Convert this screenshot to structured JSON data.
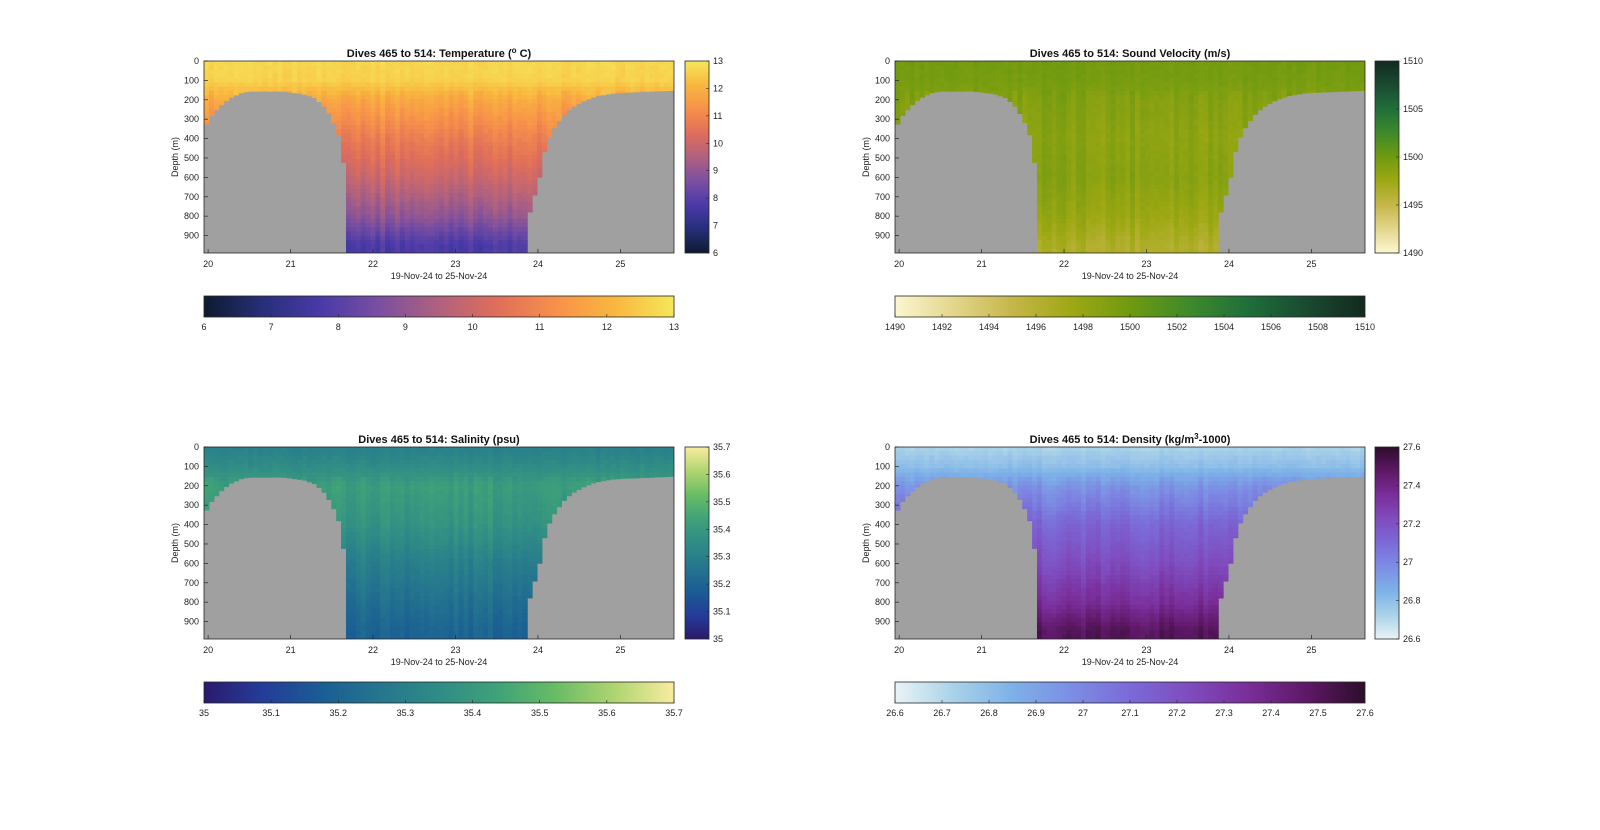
{
  "panels": [
    {
      "id": "temperature",
      "title": "Dives 465 to 514: Temperature (",
      "title_sup": "o",
      "title_end": " C)",
      "ylabel": "Depth (m)",
      "xlabel": "19-Nov-24 to 25-Nov-24",
      "cmap": [
        "#0d1b2e",
        "#262f7a",
        "#4a3aa8",
        "#7b4fa0",
        "#b0617f",
        "#e06e5a",
        "#f7914a",
        "#f9b73f",
        "#f6e75a"
      ],
      "surface": 12.6,
      "deep": 7.8,
      "mid": 10.4
    },
    {
      "id": "sound_velocity",
      "title": "Dives 465 to 514: Sound Velocity (m/s)",
      "title_sup": "",
      "title_end": "",
      "ylabel": "Depth (m)",
      "xlabel": "19-Nov-24 to 25-Nov-24",
      "cmap": [
        "#fbf6d0",
        "#e3d68c",
        "#c5b649",
        "#9ea813",
        "#6f9a10",
        "#3f8a2a",
        "#1f6f3a",
        "#1a4a30",
        "#132a1e"
      ],
      "surface": 1499.5,
      "deep": 1496.6,
      "mid": 1498.6
    },
    {
      "id": "salinity",
      "title": "Dives 465 to 514: Salinity (psu)",
      "title_sup": "",
      "title_end": "",
      "ylabel": "Depth (m)",
      "xlabel": "19-Nov-24 to 25-Nov-24",
      "cmap": [
        "#2a1a6c",
        "#243c9a",
        "#1a5d94",
        "#25768e",
        "#2f8c86",
        "#3fa278",
        "#69bc66",
        "#b0d570",
        "#f8eca0"
      ],
      "surface": 35.3,
      "deep": 35.22,
      "mid": 35.38
    },
    {
      "id": "density",
      "title": "Dives 465 to 514: Density (kg/m",
      "title_sup": "3",
      "title_end": "-1000)",
      "ylabel": "Depth (m)",
      "xlabel": "19-Nov-24 to 25-Nov-24",
      "cmap": [
        "#eaf3f6",
        "#a9d2e8",
        "#7db1e8",
        "#7c8ee4",
        "#7b6ad8",
        "#7f4cbe",
        "#7a2e9a",
        "#5e1866",
        "#2d0d2a"
      ],
      "surface": 26.78,
      "deep": 27.45,
      "mid": 27.18
    }
  ],
  "chart_data": [
    {
      "type": "heatmap",
      "title": "Dives 465 to 514: Temperature (° C)",
      "xlabel": "19-Nov-24 to 25-Nov-24",
      "ylabel": "Depth (m)",
      "x_ticks": [
        20,
        21,
        22,
        23,
        24,
        25
      ],
      "x_range": [
        19.95,
        25.65
      ],
      "y_ticks": [
        0,
        100,
        200,
        300,
        400,
        500,
        600,
        700,
        800,
        900
      ],
      "y_range": [
        0,
        990
      ],
      "colorbar_ticks": [
        6,
        7,
        8,
        9,
        10,
        11,
        12,
        13
      ],
      "clim": [
        6,
        13
      ],
      "horizontal_colorbar_ticks": [
        6,
        7,
        8,
        9,
        10,
        11,
        12,
        13
      ],
      "values_by_depth": {
        "depths": [
          0,
          100,
          200,
          400,
          600,
          800,
          950
        ],
        "values": [
          12.7,
          12.6,
          11.8,
          10.8,
          10.0,
          9.0,
          7.8
        ]
      },
      "grid": false
    },
    {
      "type": "heatmap",
      "title": "Dives 465 to 514: Sound Velocity (m/s)",
      "xlabel": "19-Nov-24 to 25-Nov-24",
      "ylabel": "Depth (m)",
      "x_ticks": [
        20,
        21,
        22,
        23,
        24,
        25
      ],
      "x_range": [
        19.95,
        25.65
      ],
      "y_ticks": [
        0,
        100,
        200,
        300,
        400,
        500,
        600,
        700,
        800,
        900
      ],
      "y_range": [
        0,
        990
      ],
      "colorbar_ticks": [
        1490,
        1495,
        1500,
        1505,
        1510
      ],
      "clim": [
        1490,
        1510
      ],
      "horizontal_colorbar_ticks": [
        1490,
        1492,
        1494,
        1496,
        1498,
        1500,
        1502,
        1504,
        1506,
        1508,
        1510
      ],
      "values_by_depth": {
        "depths": [
          0,
          100,
          200,
          400,
          600,
          800,
          950
        ],
        "values": [
          1499.8,
          1499.6,
          1499.0,
          1498.5,
          1498.8,
          1497.8,
          1496.5
        ]
      },
      "grid": false
    },
    {
      "type": "heatmap",
      "title": "Dives 465 to 514: Salinity (psu)",
      "xlabel": "19-Nov-24 to 25-Nov-24",
      "ylabel": "Depth (m)",
      "x_ticks": [
        20,
        21,
        22,
        23,
        24,
        25
      ],
      "x_range": [
        19.95,
        25.65
      ],
      "y_ticks": [
        0,
        100,
        200,
        300,
        400,
        500,
        600,
        700,
        800,
        900
      ],
      "y_range": [
        0,
        990
      ],
      "colorbar_ticks": [
        35,
        35.1,
        35.2,
        35.3,
        35.4,
        35.5,
        35.6,
        35.7
      ],
      "clim": [
        35,
        35.7
      ],
      "horizontal_colorbar_ticks": [
        35,
        35.1,
        35.2,
        35.3,
        35.4,
        35.5,
        35.6,
        35.7
      ],
      "values_by_depth": {
        "depths": [
          0,
          100,
          200,
          400,
          600,
          800,
          950
        ],
        "values": [
          35.3,
          35.35,
          35.42,
          35.38,
          35.3,
          35.24,
          35.2
        ]
      },
      "grid": false
    },
    {
      "type": "heatmap",
      "title": "Dives 465 to 514: Density (kg/m³-1000)",
      "xlabel": "19-Nov-24 to 25-Nov-24",
      "ylabel": "Depth (m)",
      "x_ticks": [
        20,
        21,
        22,
        23,
        24,
        25
      ],
      "x_range": [
        19.95,
        25.65
      ],
      "y_ticks": [
        0,
        100,
        200,
        300,
        400,
        500,
        600,
        700,
        800,
        900
      ],
      "y_range": [
        0,
        990
      ],
      "colorbar_ticks": [
        26.6,
        26.8,
        27,
        27.2,
        27.4,
        27.6
      ],
      "clim": [
        26.6,
        27.6
      ],
      "horizontal_colorbar_ticks": [
        26.6,
        26.7,
        26.8,
        26.9,
        27,
        27.1,
        27.2,
        27.3,
        27.4,
        27.5,
        27.6
      ],
      "values_by_depth": {
        "depths": [
          0,
          100,
          200,
          400,
          600,
          800,
          950
        ],
        "values": [
          26.72,
          26.8,
          26.95,
          27.12,
          27.22,
          27.35,
          27.5
        ]
      },
      "grid": false
    }
  ]
}
